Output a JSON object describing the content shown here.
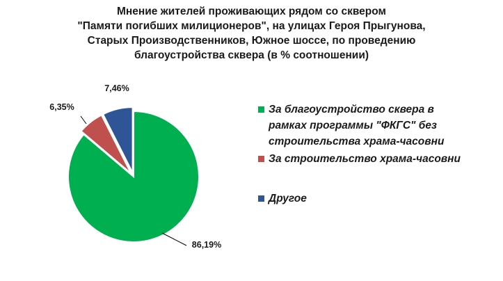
{
  "chart_data": {
    "type": "pie",
    "title_lines": [
      "Мнение жителей проживающих рядом со сквером",
      "\"Памяти погибших милиционеров\", на улицах Героя Прыгунова,",
      "Старых Производственников, Южное шоссе, по проведению",
      "благоустройства сквера (в % соотношении)"
    ],
    "slices": [
      {
        "label": "За благоустройство сквера в рамках программы \"ФКГС\" без строительства храма-часовни",
        "label_lines": [
          "За благоустройство сквера в",
          "рамках программы \"ФКГС\" без",
          "строительства храма-часовни"
        ],
        "value": 86.19,
        "display": "86,19%",
        "color": "#00b050"
      },
      {
        "label": "За строительство храма-часовни",
        "label_lines": [
          "За строительство храма-часовни"
        ],
        "value": 6.35,
        "display": "6,35%",
        "color": "#c0504d"
      },
      {
        "label": "Другое",
        "label_lines": [
          "Другое"
        ],
        "value": 7.46,
        "display": "7,46%",
        "color": "#2f5597"
      }
    ],
    "start_angle_deg": 0,
    "direction": "clockwise",
    "legend_position": "right",
    "exploded_slices": [
      "За строительство храма-часовни",
      "Другое"
    ]
  }
}
